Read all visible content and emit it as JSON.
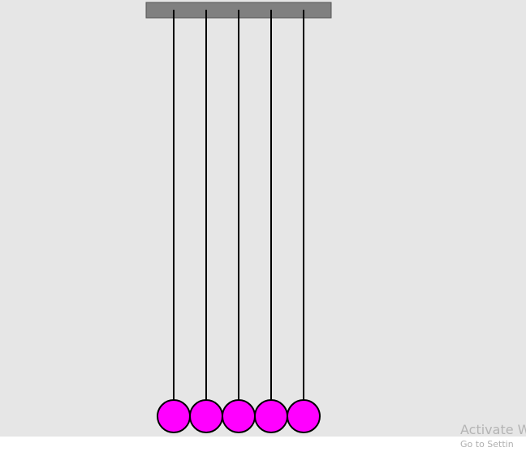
{
  "scene": {
    "background_color": "#e6e6e6",
    "frame_color": "#808080",
    "string_color": "#000000",
    "ball_color": "#ff00ff",
    "ball_outline_color": "#000000",
    "ball_count": 5
  },
  "watermark": {
    "title": "Activate W",
    "subtitle": "Go to Settin"
  }
}
